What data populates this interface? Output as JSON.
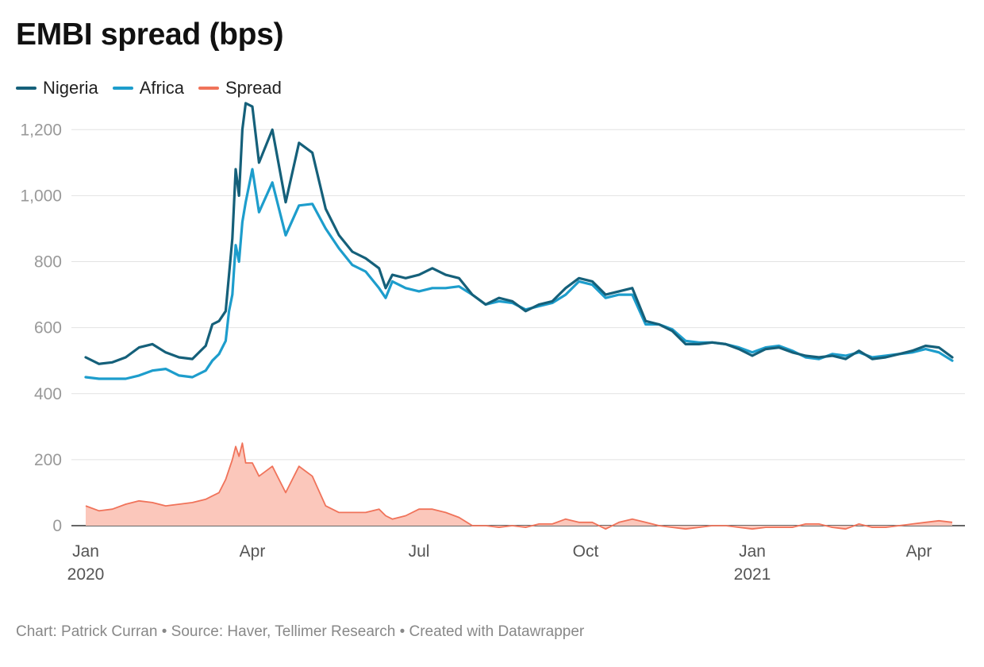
{
  "title": "EMBI spread (bps)",
  "legend": [
    {
      "label": "Nigeria",
      "color": "#15607a"
    },
    {
      "label": "Africa",
      "color": "#1d9dcc"
    },
    {
      "label": "Spread",
      "color": "#f0735a"
    }
  ],
  "footer": "Chart: Patrick Curran • Source: Haver, Tellimer Research • Created with Datawrapper",
  "chart_data": {
    "type": "line",
    "title": "EMBI spread (bps)",
    "xlabel": "",
    "ylabel": "",
    "ylim": [
      0,
      1280
    ],
    "yticks": [
      0,
      200,
      400,
      600,
      800,
      1000,
      1200
    ],
    "ytick_labels": [
      "0",
      "200",
      "400",
      "600",
      "800",
      "1,000",
      "1,200"
    ],
    "xlim": [
      0,
      1.3
    ],
    "xticks": [
      {
        "value": 0,
        "label": "Jan",
        "sublabel": "2020"
      },
      {
        "value": 0.25,
        "label": "Apr",
        "sublabel": ""
      },
      {
        "value": 0.5,
        "label": "Jul",
        "sublabel": ""
      },
      {
        "value": 0.75,
        "label": "Oct",
        "sublabel": ""
      },
      {
        "value": 1.0,
        "label": "Jan",
        "sublabel": "2021"
      },
      {
        "value": 1.25,
        "label": "Apr",
        "sublabel": ""
      }
    ],
    "grid": true,
    "legend_position": "top-left",
    "x_units": "years since Jan 2020",
    "series": [
      {
        "name": "Nigeria",
        "color": "#15607a",
        "style": "line",
        "x": [
          0,
          0.02,
          0.04,
          0.06,
          0.08,
          0.1,
          0.12,
          0.14,
          0.16,
          0.18,
          0.19,
          0.2,
          0.21,
          0.215,
          0.22,
          0.225,
          0.23,
          0.235,
          0.24,
          0.25,
          0.26,
          0.28,
          0.3,
          0.32,
          0.34,
          0.36,
          0.38,
          0.4,
          0.42,
          0.44,
          0.45,
          0.46,
          0.48,
          0.5,
          0.52,
          0.54,
          0.56,
          0.58,
          0.6,
          0.62,
          0.64,
          0.66,
          0.68,
          0.7,
          0.72,
          0.74,
          0.76,
          0.78,
          0.8,
          0.82,
          0.84,
          0.86,
          0.88,
          0.9,
          0.92,
          0.94,
          0.96,
          0.98,
          1.0,
          1.02,
          1.04,
          1.06,
          1.08,
          1.1,
          1.12,
          1.14,
          1.16,
          1.18,
          1.2,
          1.22,
          1.24,
          1.26,
          1.28,
          1.3
        ],
        "values": [
          510,
          490,
          495,
          510,
          540,
          550,
          525,
          510,
          505,
          545,
          610,
          620,
          650,
          760,
          870,
          1080,
          1000,
          1200,
          1280,
          1270,
          1100,
          1200,
          980,
          1160,
          1130,
          960,
          880,
          830,
          810,
          780,
          720,
          760,
          750,
          760,
          780,
          760,
          750,
          700,
          670,
          690,
          680,
          650,
          670,
          680,
          720,
          750,
          740,
          700,
          710,
          720,
          620,
          610,
          590,
          550,
          550,
          555,
          550,
          535,
          515,
          535,
          540,
          525,
          515,
          510,
          515,
          505,
          530,
          505,
          510,
          520,
          530,
          545,
          540,
          510
        ]
      },
      {
        "name": "Africa",
        "color": "#1d9dcc",
        "style": "line",
        "x": [
          0,
          0.02,
          0.04,
          0.06,
          0.08,
          0.1,
          0.12,
          0.14,
          0.16,
          0.18,
          0.19,
          0.2,
          0.21,
          0.215,
          0.22,
          0.225,
          0.23,
          0.235,
          0.24,
          0.25,
          0.26,
          0.28,
          0.3,
          0.32,
          0.34,
          0.36,
          0.38,
          0.4,
          0.42,
          0.44,
          0.45,
          0.46,
          0.48,
          0.5,
          0.52,
          0.54,
          0.56,
          0.58,
          0.6,
          0.62,
          0.64,
          0.66,
          0.68,
          0.7,
          0.72,
          0.74,
          0.76,
          0.78,
          0.8,
          0.82,
          0.84,
          0.86,
          0.88,
          0.9,
          0.92,
          0.94,
          0.96,
          0.98,
          1.0,
          1.02,
          1.04,
          1.06,
          1.08,
          1.1,
          1.12,
          1.14,
          1.16,
          1.18,
          1.2,
          1.22,
          1.24,
          1.26,
          1.28,
          1.3
        ],
        "values": [
          450,
          445,
          445,
          445,
          455,
          470,
          475,
          455,
          450,
          470,
          500,
          520,
          560,
          650,
          700,
          850,
          800,
          920,
          980,
          1080,
          950,
          1040,
          880,
          970,
          975,
          900,
          840,
          790,
          770,
          720,
          690,
          740,
          720,
          710,
          720,
          720,
          725,
          700,
          670,
          680,
          675,
          655,
          665,
          675,
          700,
          740,
          730,
          690,
          700,
          700,
          610,
          610,
          595,
          560,
          555,
          555,
          550,
          540,
          525,
          540,
          545,
          530,
          510,
          505,
          520,
          515,
          525,
          510,
          515,
          520,
          525,
          535,
          525,
          500
        ]
      },
      {
        "name": "Spread",
        "color": "#f0735a",
        "fill": "#fbc7bb",
        "style": "area",
        "x": [
          0,
          0.02,
          0.04,
          0.06,
          0.08,
          0.1,
          0.12,
          0.14,
          0.16,
          0.18,
          0.19,
          0.2,
          0.21,
          0.215,
          0.22,
          0.225,
          0.23,
          0.235,
          0.24,
          0.25,
          0.26,
          0.28,
          0.3,
          0.32,
          0.34,
          0.36,
          0.38,
          0.4,
          0.42,
          0.44,
          0.45,
          0.46,
          0.48,
          0.5,
          0.52,
          0.54,
          0.56,
          0.58,
          0.6,
          0.62,
          0.64,
          0.66,
          0.68,
          0.7,
          0.72,
          0.74,
          0.76,
          0.78,
          0.8,
          0.82,
          0.84,
          0.86,
          0.88,
          0.9,
          0.92,
          0.94,
          0.96,
          0.98,
          1.0,
          1.02,
          1.04,
          1.06,
          1.08,
          1.1,
          1.12,
          1.14,
          1.16,
          1.18,
          1.2,
          1.22,
          1.24,
          1.26,
          1.28,
          1.3
        ],
        "values": [
          60,
          45,
          50,
          65,
          75,
          70,
          60,
          65,
          70,
          80,
          90,
          100,
          140,
          170,
          200,
          240,
          210,
          250,
          190,
          190,
          150,
          180,
          100,
          180,
          150,
          60,
          40,
          40,
          40,
          50,
          30,
          20,
          30,
          50,
          50,
          40,
          25,
          0,
          0,
          -5,
          0,
          -5,
          5,
          5,
          20,
          10,
          10,
          -10,
          10,
          20,
          10,
          0,
          -5,
          -10,
          -5,
          0,
          0,
          -5,
          -10,
          -5,
          -5,
          -5,
          5,
          5,
          -5,
          -10,
          5,
          -5,
          -5,
          0,
          5,
          10,
          15,
          10
        ]
      }
    ]
  }
}
